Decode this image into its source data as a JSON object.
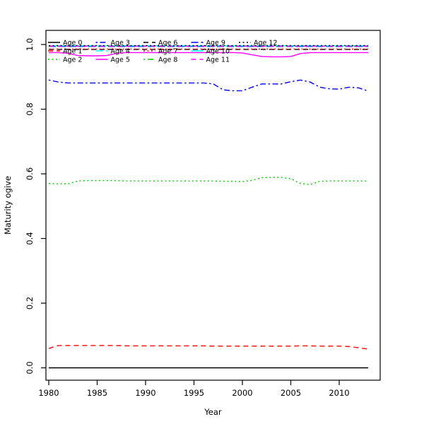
{
  "figure_title": "",
  "chart_data": {
    "type": "line",
    "title": "",
    "xlabel": "Year",
    "ylabel": "Maturity ogive",
    "grid": false,
    "legend_position": "top-inside",
    "legend_columns": 5,
    "xlim": [
      1979.6,
      2014.2
    ],
    "ylim": [
      -0.04,
      1.04
    ],
    "x_ticks": [
      1980,
      1985,
      1990,
      1995,
      2000,
      2005,
      2010
    ],
    "y_ticks": [
      0.0,
      0.2,
      0.4,
      0.6,
      0.8,
      1.0
    ],
    "y_tick_labels": [
      "0.0",
      "0.2",
      "0.4",
      "0.6",
      "0.8",
      "1.0"
    ],
    "x": [
      1980,
      1981,
      1982,
      1983,
      1984,
      1985,
      1986,
      1987,
      1988,
      1989,
      1990,
      1991,
      1992,
      1993,
      1994,
      1995,
      1996,
      1997,
      1998,
      1999,
      2000,
      2001,
      2002,
      2003,
      2004,
      2005,
      2006,
      2007,
      2008,
      2009,
      2010,
      2011,
      2012,
      2013
    ],
    "colors": {
      "black": "#000000",
      "red": "#FF0000",
      "green": "#00CD00",
      "blue": "#0000FF",
      "cyan": "#00FFFF",
      "magenta": "#FF00FF"
    },
    "series": [
      {
        "name": "Age 0",
        "color": "#000000",
        "linetype": "solid",
        "values": [
          0,
          0,
          0,
          0,
          0,
          0,
          0,
          0,
          0,
          0,
          0,
          0,
          0,
          0,
          0,
          0,
          0,
          0,
          0,
          0,
          0,
          0,
          0,
          0,
          0,
          0,
          0,
          0,
          0,
          0,
          0,
          0,
          0,
          0
        ]
      },
      {
        "name": "Age 1",
        "color": "#FF0000",
        "linetype": "dashed",
        "values": [
          0.06,
          0.069,
          0.069,
          0.069,
          0.069,
          0.069,
          0.069,
          0.069,
          0.068,
          0.068,
          0.068,
          0.068,
          0.068,
          0.068,
          0.068,
          0.068,
          0.068,
          0.067,
          0.067,
          0.067,
          0.067,
          0.067,
          0.067,
          0.067,
          0.067,
          0.067,
          0.068,
          0.068,
          0.067,
          0.067,
          0.067,
          0.066,
          0.062,
          0.058
        ]
      },
      {
        "name": "Age 2",
        "color": "#00CD00",
        "linetype": "dotted",
        "values": [
          0.57,
          0.569,
          0.569,
          0.578,
          0.579,
          0.579,
          0.579,
          0.579,
          0.578,
          0.578,
          0.578,
          0.578,
          0.578,
          0.578,
          0.578,
          0.578,
          0.578,
          0.578,
          0.577,
          0.577,
          0.576,
          0.58,
          0.588,
          0.589,
          0.589,
          0.585,
          0.57,
          0.567,
          0.577,
          0.578,
          0.578,
          0.578,
          0.578,
          0.578
        ]
      },
      {
        "name": "Age 3",
        "color": "#0000FF",
        "linetype": "dotdash",
        "values": [
          0.89,
          0.884,
          0.881,
          0.881,
          0.881,
          0.881,
          0.881,
          0.881,
          0.881,
          0.881,
          0.881,
          0.881,
          0.881,
          0.881,
          0.881,
          0.881,
          0.881,
          0.878,
          0.86,
          0.857,
          0.857,
          0.868,
          0.878,
          0.878,
          0.878,
          0.885,
          0.89,
          0.884,
          0.868,
          0.863,
          0.862,
          0.868,
          0.866,
          0.856
        ]
      },
      {
        "name": "Age 4",
        "color": "#00FFFF",
        "linetype": "longdash",
        "values": [
          0.996,
          0.996,
          0.996,
          0.996,
          0.996,
          0.996,
          0.996,
          0.996,
          0.996,
          0.996,
          0.996,
          0.996,
          0.996,
          0.996,
          0.996,
          0.996,
          0.996,
          0.996,
          0.996,
          0.996,
          0.996,
          0.996,
          0.996,
          0.996,
          0.996,
          0.996,
          0.996,
          0.996,
          0.996,
          0.996,
          0.996,
          0.996,
          0.996,
          0.996
        ]
      },
      {
        "name": "Age 5",
        "color": "#FF00FF",
        "linetype": "solid",
        "values": [
          0.975,
          0.975,
          0.973,
          0.966,
          0.965,
          0.965,
          0.966,
          0.973,
          0.975,
          0.975,
          0.975,
          0.975,
          0.975,
          0.975,
          0.975,
          0.975,
          0.975,
          0.975,
          0.975,
          0.975,
          0.974,
          0.968,
          0.963,
          0.962,
          0.962,
          0.963,
          0.972,
          0.975,
          0.975,
          0.975,
          0.975,
          0.975,
          0.975,
          0.975
        ]
      },
      {
        "name": "Age 6",
        "color": "#000000",
        "linetype": "dashed",
        "values": [
          0.985,
          0.985,
          0.985,
          0.985,
          0.985,
          0.985,
          0.985,
          0.985,
          0.985,
          0.985,
          0.985,
          0.985,
          0.985,
          0.985,
          0.985,
          0.985,
          0.985,
          0.985,
          0.985,
          0.985,
          0.985,
          0.985,
          0.985,
          0.985,
          0.985,
          0.985,
          0.985,
          0.985,
          0.985,
          0.985,
          0.985,
          0.985,
          0.985,
          0.985
        ]
      },
      {
        "name": "Age 7",
        "color": "#FF0000",
        "linetype": "dotted",
        "values": [
          0.986,
          0.986,
          0.986,
          0.986,
          0.986,
          0.986,
          0.986,
          0.986,
          0.986,
          0.986,
          0.986,
          0.986,
          0.986,
          0.986,
          0.986,
          0.986,
          0.986,
          0.986,
          0.986,
          0.986,
          0.986,
          0.986,
          0.986,
          0.986,
          0.986,
          0.986,
          0.986,
          0.986,
          0.986,
          0.986,
          0.986,
          0.986,
          0.986,
          0.986
        ]
      },
      {
        "name": "Age 8",
        "color": "#00CD00",
        "linetype": "dotdash",
        "values": [
          0.996,
          0.996,
          0.996,
          0.996,
          0.996,
          0.996,
          0.996,
          0.996,
          0.996,
          0.996,
          0.996,
          0.996,
          0.996,
          0.996,
          0.996,
          0.996,
          0.996,
          0.996,
          0.996,
          0.996,
          0.996,
          0.996,
          0.996,
          0.996,
          0.996,
          0.996,
          0.996,
          0.996,
          0.996,
          0.996,
          0.996,
          0.996,
          0.996,
          0.996
        ]
      },
      {
        "name": "Age 9",
        "color": "#0000FF",
        "linetype": "longdash",
        "values": [
          0.994,
          0.994,
          0.994,
          0.994,
          0.994,
          0.994,
          0.994,
          0.994,
          0.994,
          0.994,
          0.994,
          0.994,
          0.994,
          0.994,
          0.994,
          0.994,
          0.994,
          0.994,
          0.994,
          0.994,
          0.994,
          0.994,
          0.994,
          0.994,
          0.994,
          0.994,
          0.994,
          0.994,
          0.994,
          0.994,
          0.994,
          0.994,
          0.994,
          0.994
        ]
      },
      {
        "name": "Age 10",
        "color": "#00FFFF",
        "linetype": "solid",
        "values": [
          0.996,
          0.996,
          0.996,
          0.996,
          0.996,
          0.996,
          0.996,
          0.996,
          0.996,
          0.996,
          0.996,
          0.996,
          0.996,
          0.996,
          0.996,
          0.996,
          0.996,
          0.996,
          0.996,
          0.996,
          0.996,
          0.996,
          0.996,
          0.996,
          0.996,
          0.996,
          0.996,
          0.996,
          0.996,
          0.996,
          0.996,
          0.996,
          0.996,
          0.996
        ]
      },
      {
        "name": "Age 11",
        "color": "#FF00FF",
        "linetype": "dashed",
        "values": [
          0.995,
          0.995,
          0.995,
          0.995,
          0.995,
          0.995,
          0.995,
          0.995,
          0.995,
          0.995,
          0.995,
          0.995,
          0.995,
          0.995,
          0.995,
          0.995,
          0.995,
          0.995,
          0.995,
          0.995,
          0.995,
          0.995,
          0.995,
          0.995,
          0.995,
          0.995,
          0.995,
          0.995,
          0.995,
          0.995,
          0.995,
          0.995,
          0.995,
          0.995
        ]
      },
      {
        "name": "Age 12",
        "color": "#000000",
        "linetype": "dotted",
        "values": [
          0.997,
          0.997,
          0.997,
          0.997,
          0.997,
          0.997,
          0.997,
          0.997,
          0.997,
          0.997,
          0.997,
          0.997,
          0.997,
          0.997,
          0.997,
          0.997,
          0.997,
          0.997,
          0.997,
          0.997,
          0.997,
          0.997,
          0.997,
          0.997,
          0.997,
          0.997,
          0.997,
          0.997,
          0.997,
          0.997,
          0.997,
          0.997,
          0.997,
          0.997
        ]
      }
    ]
  }
}
